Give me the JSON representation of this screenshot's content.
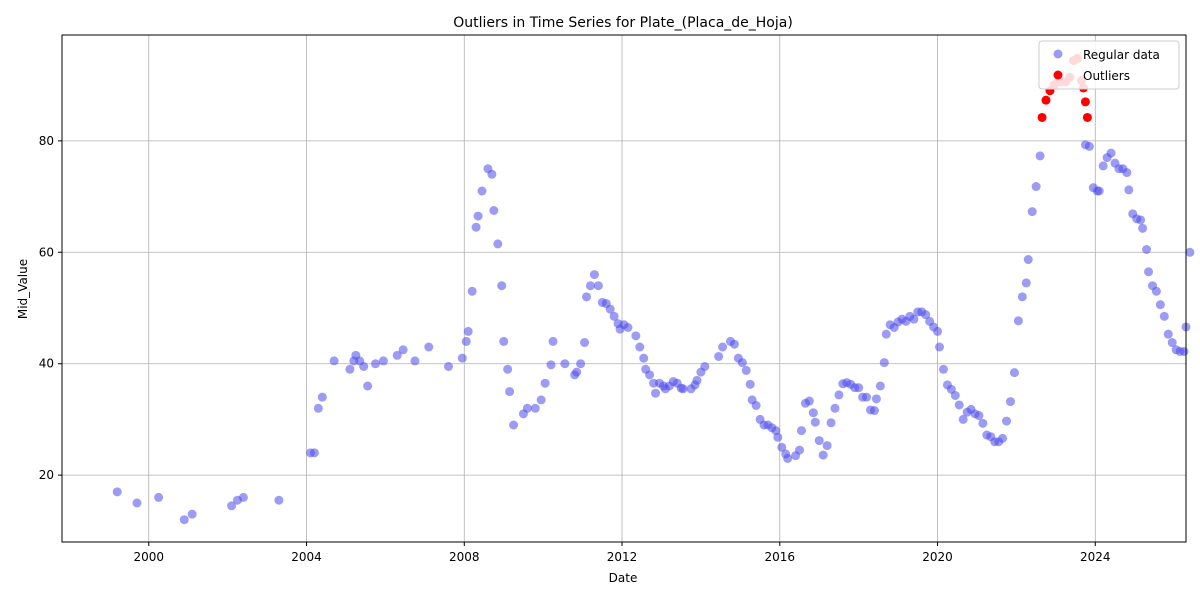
{
  "chart_data": {
    "type": "scatter",
    "title": "Outliers in Time Series for Plate_(Placa_de_Hoja)",
    "xlabel": "Date",
    "ylabel": "Mid_Value",
    "xlim": [
      1997.8,
      2026.3
    ],
    "ylim": [
      8,
      99
    ],
    "x_ticks": [
      2000,
      2004,
      2008,
      2012,
      2016,
      2020,
      2024
    ],
    "y_ticks": [
      20,
      40,
      60,
      80
    ],
    "grid": true,
    "legend_position": "top-right",
    "colors": {
      "regular": "#4a4aeb",
      "outliers": "#ff0000"
    },
    "series": [
      {
        "name": "Regular data",
        "points": [
          [
            1999.2,
            17
          ],
          [
            1999.7,
            15
          ],
          [
            2000.25,
            16
          ],
          [
            2000.9,
            12
          ],
          [
            2001.1,
            13
          ],
          [
            2002.1,
            14.5
          ],
          [
            2002.25,
            15.5
          ],
          [
            2002.4,
            16
          ],
          [
            2003.3,
            15.5
          ],
          [
            2004.1,
            24
          ],
          [
            2004.2,
            24
          ],
          [
            2004.3,
            32
          ],
          [
            2004.4,
            34
          ],
          [
            2004.7,
            40.5
          ],
          [
            2005.1,
            39
          ],
          [
            2005.2,
            40.5
          ],
          [
            2005.25,
            41.5
          ],
          [
            2005.35,
            40.5
          ],
          [
            2005.45,
            39.5
          ],
          [
            2005.55,
            36
          ],
          [
            2005.75,
            40
          ],
          [
            2005.95,
            40.5
          ],
          [
            2006.3,
            41.5
          ],
          [
            2006.45,
            42.5
          ],
          [
            2006.75,
            40.5
          ],
          [
            2007.1,
            43
          ],
          [
            2007.6,
            39.5
          ],
          [
            2007.95,
            41
          ],
          [
            2008.05,
            44
          ],
          [
            2008.1,
            45.8
          ],
          [
            2008.2,
            53
          ],
          [
            2008.3,
            64.5
          ],
          [
            2008.35,
            66.5
          ],
          [
            2008.45,
            71
          ],
          [
            2008.6,
            75
          ],
          [
            2008.7,
            74
          ],
          [
            2008.75,
            67.5
          ],
          [
            2008.85,
            61.5
          ],
          [
            2008.95,
            54
          ],
          [
            2009.0,
            44
          ],
          [
            2009.1,
            39
          ],
          [
            2009.15,
            35
          ],
          [
            2009.25,
            29
          ],
          [
            2009.5,
            31
          ],
          [
            2009.6,
            32
          ],
          [
            2009.8,
            32
          ],
          [
            2009.95,
            33.5
          ],
          [
            2010.05,
            36.5
          ],
          [
            2010.2,
            39.8
          ],
          [
            2010.25,
            44
          ],
          [
            2010.55,
            40
          ],
          [
            2010.8,
            38
          ],
          [
            2010.85,
            38.5
          ],
          [
            2010.95,
            40
          ],
          [
            2011.05,
            43.8
          ],
          [
            2011.1,
            52
          ],
          [
            2011.2,
            54
          ],
          [
            2011.3,
            56
          ],
          [
            2011.4,
            54
          ],
          [
            2011.5,
            51
          ],
          [
            2011.6,
            50.8
          ],
          [
            2011.7,
            49.8
          ],
          [
            2011.8,
            48.5
          ],
          [
            2011.9,
            47.2
          ],
          [
            2011.95,
            46.2
          ],
          [
            2012.05,
            47
          ],
          [
            2012.15,
            46.5
          ],
          [
            2012.35,
            45
          ],
          [
            2012.45,
            43
          ],
          [
            2012.55,
            41
          ],
          [
            2012.6,
            39
          ],
          [
            2012.7,
            38
          ],
          [
            2012.8,
            36.5
          ],
          [
            2012.85,
            34.7
          ],
          [
            2012.95,
            36.5
          ],
          [
            2013.05,
            36
          ],
          [
            2013.1,
            35.5
          ],
          [
            2013.2,
            36
          ],
          [
            2013.3,
            36.8
          ],
          [
            2013.4,
            36.5
          ],
          [
            2013.5,
            35.6
          ],
          [
            2013.55,
            35.5
          ],
          [
            2013.75,
            35.5
          ],
          [
            2013.85,
            36.2
          ],
          [
            2013.9,
            37
          ],
          [
            2014.0,
            38.5
          ],
          [
            2014.1,
            39.5
          ],
          [
            2014.45,
            41.3
          ],
          [
            2014.55,
            43
          ],
          [
            2014.75,
            44
          ],
          [
            2014.85,
            43.5
          ],
          [
            2014.95,
            41
          ],
          [
            2015.05,
            40.2
          ],
          [
            2015.15,
            38.8
          ],
          [
            2015.25,
            36.3
          ],
          [
            2015.3,
            33.5
          ],
          [
            2015.4,
            32.5
          ],
          [
            2015.5,
            30
          ],
          [
            2015.6,
            29
          ],
          [
            2015.7,
            29
          ],
          [
            2015.8,
            28.5
          ],
          [
            2015.9,
            28
          ],
          [
            2015.95,
            26.8
          ],
          [
            2016.05,
            25
          ],
          [
            2016.15,
            23.8
          ],
          [
            2016.2,
            23
          ],
          [
            2016.4,
            23.5
          ],
          [
            2016.5,
            24.5
          ],
          [
            2016.55,
            28
          ],
          [
            2016.65,
            32.9
          ],
          [
            2016.75,
            33.3
          ],
          [
            2016.85,
            31.2
          ],
          [
            2016.9,
            29.5
          ],
          [
            2017.0,
            26.2
          ],
          [
            2017.1,
            23.6
          ],
          [
            2017.2,
            25.3
          ],
          [
            2017.3,
            29.4
          ],
          [
            2017.4,
            32
          ],
          [
            2017.5,
            34.4
          ],
          [
            2017.6,
            36.4
          ],
          [
            2017.7,
            36.6
          ],
          [
            2017.8,
            36.3
          ],
          [
            2017.9,
            35.7
          ],
          [
            2018.0,
            35.7
          ],
          [
            2018.1,
            34
          ],
          [
            2018.2,
            34
          ],
          [
            2018.3,
            31.7
          ],
          [
            2018.4,
            31.6
          ],
          [
            2018.45,
            33.7
          ],
          [
            2018.55,
            36
          ],
          [
            2018.65,
            40.2
          ],
          [
            2018.7,
            45.3
          ],
          [
            2018.8,
            47
          ],
          [
            2018.9,
            46.5
          ],
          [
            2019.0,
            47.5
          ],
          [
            2019.1,
            48
          ],
          [
            2019.2,
            47.6
          ],
          [
            2019.3,
            48.5
          ],
          [
            2019.4,
            48
          ],
          [
            2019.5,
            49.3
          ],
          [
            2019.6,
            49.3
          ],
          [
            2019.7,
            48.8
          ],
          [
            2019.8,
            47.6
          ],
          [
            2019.9,
            46.6
          ],
          [
            2020.0,
            45.8
          ],
          [
            2020.05,
            43
          ],
          [
            2020.15,
            39
          ],
          [
            2020.25,
            36.2
          ],
          [
            2020.35,
            35.4
          ],
          [
            2020.45,
            34.3
          ],
          [
            2020.55,
            32.6
          ],
          [
            2020.65,
            30
          ],
          [
            2020.75,
            31.3
          ],
          [
            2020.85,
            31.8
          ],
          [
            2020.95,
            31
          ],
          [
            2021.05,
            30.7
          ],
          [
            2021.15,
            29.3
          ],
          [
            2021.25,
            27.2
          ],
          [
            2021.35,
            26.9
          ],
          [
            2021.45,
            26
          ],
          [
            2021.55,
            26
          ],
          [
            2021.65,
            26.6
          ],
          [
            2021.75,
            29.7
          ],
          [
            2021.85,
            33.2
          ],
          [
            2021.95,
            38.4
          ],
          [
            2022.05,
            47.7
          ],
          [
            2022.15,
            52
          ],
          [
            2022.25,
            54.5
          ],
          [
            2022.3,
            58.7
          ],
          [
            2022.4,
            67.3
          ],
          [
            2022.5,
            71.8
          ],
          [
            2022.6,
            77.3
          ],
          [
            2023.75,
            79.3
          ],
          [
            2023.85,
            79
          ],
          [
            2023.95,
            71.6
          ],
          [
            2024.05,
            71
          ],
          [
            2024.1,
            71
          ],
          [
            2024.2,
            75.5
          ],
          [
            2024.3,
            77
          ],
          [
            2024.4,
            77.8
          ],
          [
            2024.5,
            76
          ],
          [
            2024.6,
            75
          ],
          [
            2024.7,
            75
          ],
          [
            2024.8,
            74.3
          ],
          [
            2024.85,
            71.2
          ],
          [
            2024.95,
            66.9
          ],
          [
            2025.05,
            66
          ],
          [
            2025.15,
            65.8
          ],
          [
            2025.2,
            64.3
          ],
          [
            2025.3,
            60.5
          ],
          [
            2025.35,
            56.5
          ],
          [
            2025.45,
            54
          ],
          [
            2025.55,
            53
          ],
          [
            2025.65,
            50.6
          ],
          [
            2025.75,
            48.5
          ],
          [
            2025.85,
            45.3
          ],
          [
            2025.95,
            43.8
          ],
          [
            2026.05,
            42.5
          ],
          [
            2026.15,
            42.2
          ],
          [
            2026.25,
            42.2
          ],
          [
            2026.3,
            46.6
          ],
          [
            2026.4,
            60
          ]
        ]
      },
      {
        "name": "Outliers",
        "points": [
          [
            2022.65,
            84.2
          ],
          [
            2022.75,
            87.3
          ],
          [
            2022.85,
            89
          ],
          [
            2022.95,
            90
          ],
          [
            2023.05,
            90.6
          ],
          [
            2023.15,
            90.6
          ],
          [
            2023.25,
            90.6
          ],
          [
            2023.35,
            91.4
          ],
          [
            2023.45,
            94.4
          ],
          [
            2023.55,
            94.8
          ],
          [
            2023.65,
            90.8
          ],
          [
            2023.7,
            89.5
          ],
          [
            2023.75,
            87
          ],
          [
            2023.8,
            84.2
          ]
        ]
      }
    ]
  }
}
